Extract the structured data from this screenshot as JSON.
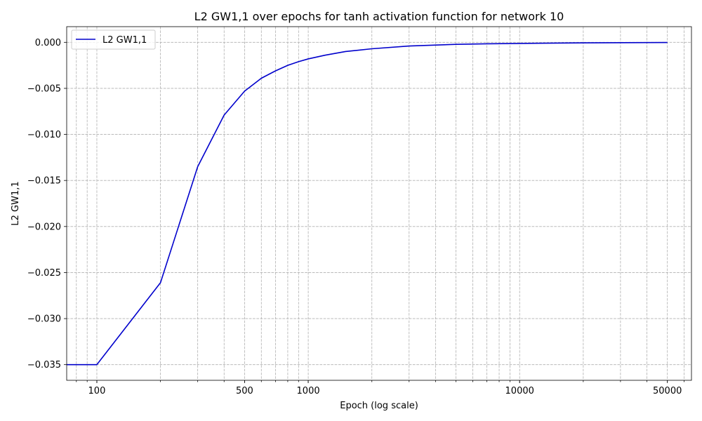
{
  "chart_data": {
    "type": "line",
    "title": "L2 GW1,1 over epochs for tanh activation function for network 10",
    "xlabel": "Epoch (log scale)",
    "ylabel": "L2 GW1,1",
    "xscale": "log",
    "xlim": [
      72,
      65000
    ],
    "ylim": [
      -0.0367,
      0.0017
    ],
    "grid": true,
    "legend_position": "top-left",
    "x_tick_labels": [
      "100",
      "500",
      "1000",
      "10000",
      "50000"
    ],
    "x_tick_values": [
      100,
      500,
      1000,
      10000,
      50000
    ],
    "y_tick_labels": [
      "0.000",
      "−0.005",
      "−0.010",
      "−0.015",
      "−0.020",
      "−0.025",
      "−0.030",
      "−0.035"
    ],
    "y_tick_values": [
      0.0,
      -0.005,
      -0.01,
      -0.015,
      -0.02,
      -0.025,
      -0.03,
      -0.035
    ],
    "series": [
      {
        "name": "L2 GW1,1",
        "color": "#0000cc",
        "x": [
          1,
          100,
          200,
          300,
          400,
          500,
          600,
          700,
          800,
          900,
          1000,
          1200,
          1500,
          2000,
          3000,
          5000,
          7000,
          10000,
          20000,
          50000
        ],
        "y": [
          -0.035,
          -0.035,
          -0.0261,
          -0.0135,
          -0.0079,
          -0.0053,
          -0.0039,
          -0.0031,
          -0.0025,
          -0.0021,
          -0.0018,
          -0.0014,
          -0.001,
          -0.0007,
          -0.0004,
          -0.00022,
          -0.00016,
          -0.00012,
          -6e-05,
          -2e-05
        ]
      }
    ]
  }
}
